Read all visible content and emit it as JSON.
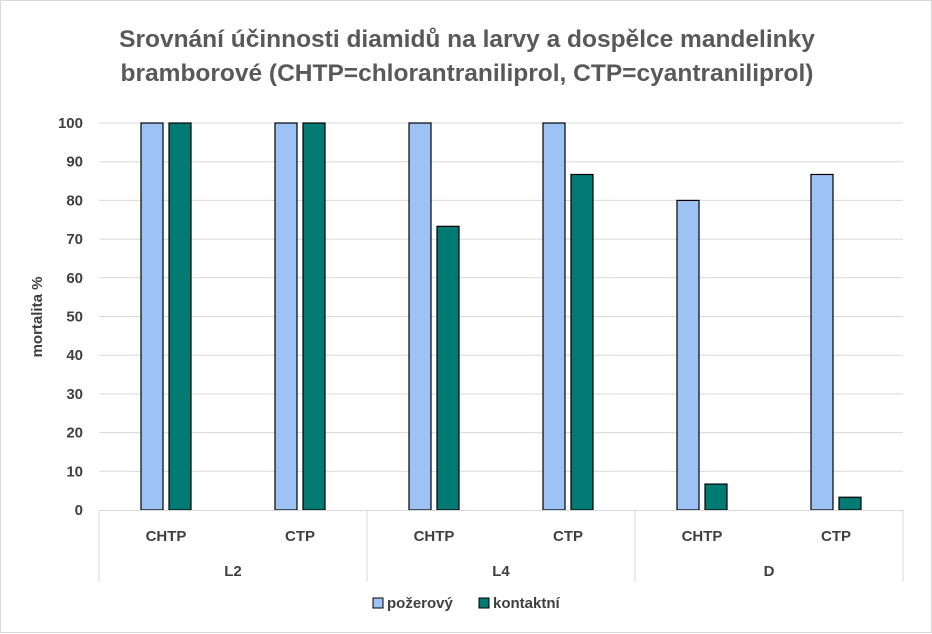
{
  "chart_data": {
    "type": "bar",
    "title_lines": [
      "Srovnání účinnosti diamidů na larvy a dospělce mandelinky",
      "bramborové (CHTP=chlorantraniliprol,  CTP=cyantraniliprol)"
    ],
    "ylabel": "mortalita %",
    "xlabel": "",
    "ylim": [
      0,
      100
    ],
    "yticks": [
      0,
      10,
      20,
      30,
      40,
      50,
      60,
      70,
      80,
      90,
      100
    ],
    "grid": true,
    "legend_position": "bottom",
    "groups": [
      {
        "label": "L2",
        "categories": [
          "CHTP",
          "CTP"
        ]
      },
      {
        "label": "L4",
        "categories": [
          "CHTP",
          "CTP"
        ]
      },
      {
        "label": "D",
        "categories": [
          "CHTP",
          "CTP"
        ]
      }
    ],
    "categories": [
      "L2 CHTP",
      "L2 CTP",
      "L4 CHTP",
      "L4 CTP",
      "D CHTP",
      "D CTP"
    ],
    "series": [
      {
        "name": "požerový",
        "color": "#9dc3f5",
        "values": [
          100,
          100,
          100,
          100,
          80,
          86.7
        ]
      },
      {
        "name": "kontaktní",
        "color": "#007a73",
        "values": [
          100,
          100,
          73.3,
          86.7,
          6.7,
          3.3
        ]
      }
    ]
  }
}
